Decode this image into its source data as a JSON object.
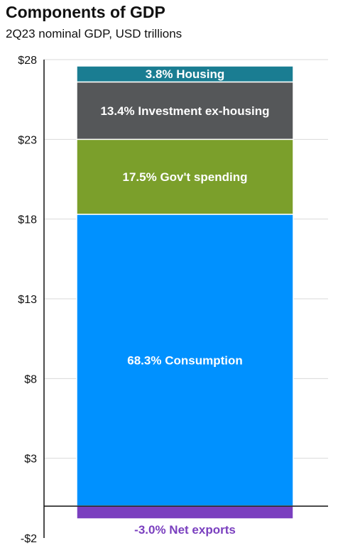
{
  "title": "Components of GDP",
  "subtitle": "2Q23 nominal GDP, USD trillions",
  "chart_data": {
    "type": "bar",
    "stacked": true,
    "title": "Components of GDP",
    "subtitle": "2Q23 nominal GDP, USD trillions",
    "ylim": [
      -2,
      28
    ],
    "yticks": [
      -2,
      3,
      8,
      13,
      18,
      23,
      28
    ],
    "ytick_labels": [
      "-$2",
      "$3",
      "$8",
      "$13",
      "$18",
      "$23",
      "$28"
    ],
    "grid": true,
    "segments": [
      {
        "name": "Consumption",
        "label": "68.3% Consumption",
        "share_pct": 68.3,
        "value": 18.3,
        "color": "#0091FF"
      },
      {
        "name": "Gov't spending",
        "label": "17.5% Gov't  spending",
        "share_pct": 17.5,
        "value": 4.7,
        "color": "#7B9F2B"
      },
      {
        "name": "Investment ex-housing",
        "label": "13.4% Investment ex-housing",
        "share_pct": 13.4,
        "value": 3.6,
        "color": "#555759"
      },
      {
        "name": "Housing",
        "label": "3.8% Housing",
        "share_pct": 3.8,
        "value": 1.0,
        "color": "#1A7D92"
      },
      {
        "name": "Net exports",
        "label": "-3.0% Net exports",
        "share_pct": -3.0,
        "value": -0.8,
        "color": "#7A3FBF"
      }
    ],
    "net_exports_label_color": "#7A3FBF"
  }
}
